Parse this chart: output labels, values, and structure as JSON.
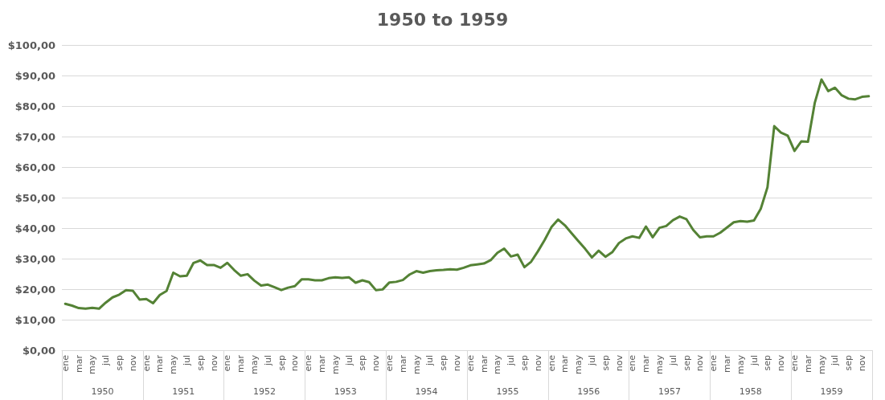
{
  "chart_data": {
    "type": "line",
    "title": "1950 to 1959",
    "categories": [
      "ene",
      null,
      "mar",
      null,
      "may",
      null,
      "jul",
      null,
      "sep",
      null,
      "nov",
      null,
      "ene",
      null,
      "mar",
      null,
      "may",
      null,
      "jul",
      null,
      "sep",
      null,
      "nov",
      null,
      "ene",
      null,
      "mar",
      null,
      "may",
      null,
      "jul",
      null,
      "sep",
      null,
      "nov",
      null,
      "ene",
      null,
      "mar",
      null,
      "may",
      null,
      "jul",
      null,
      "sep",
      null,
      "nov",
      null,
      "ene",
      null,
      "mar",
      null,
      "may",
      null,
      "jul",
      null,
      "sep",
      null,
      "nov",
      null,
      "ene",
      null,
      "mar",
      null,
      "may",
      null,
      "jul",
      null,
      "sep",
      null,
      "nov",
      null,
      "ene",
      null,
      "mar",
      null,
      "may",
      null,
      "jul",
      null,
      "sep",
      null,
      "nov",
      null,
      "ene",
      null,
      "mar",
      null,
      "may",
      null,
      "jul",
      null,
      "sep",
      null,
      "nov",
      null,
      "ene",
      null,
      "mar",
      null,
      "may",
      null,
      "jul",
      null,
      "sep",
      null,
      "nov",
      null,
      "ene",
      null,
      "mar",
      null,
      "may",
      null,
      "jul",
      null,
      "sep",
      null,
      "nov",
      null
    ],
    "annotations": [
      "1950",
      "1951",
      "1952",
      "1953",
      "1954",
      "1955",
      "1956",
      "1957",
      "1958",
      "1959"
    ],
    "series": [
      {
        "color": "#548235",
        "values": [
          15.2,
          14.6,
          13.8,
          13.6,
          13.9,
          13.6,
          15.6,
          17.3,
          18.2,
          19.7,
          19.5,
          16.6,
          16.8,
          15.4,
          18.1,
          19.4,
          25.4,
          24.2,
          24.4,
          28.6,
          29.4,
          27.9,
          27.9,
          27.0,
          28.6,
          26.3,
          24.4,
          24.9,
          22.8,
          21.2,
          21.5,
          20.6,
          19.7,
          20.5,
          21.0,
          23.2,
          23.2,
          22.9,
          22.9,
          23.6,
          23.9,
          23.7,
          23.9,
          22.1,
          22.9,
          22.3,
          19.7,
          19.9,
          22.2,
          22.4,
          23.0,
          24.8,
          25.9,
          25.4,
          25.9,
          26.2,
          26.3,
          26.5,
          26.4,
          27.0,
          27.8,
          28.1,
          28.4,
          29.5,
          31.9,
          33.3,
          30.7,
          31.3,
          27.2,
          29.0,
          32.4,
          36.1,
          40.3,
          42.8,
          40.9,
          38.3,
          35.7,
          33.2,
          30.4,
          32.6,
          30.6,
          32.1,
          35.1,
          36.6,
          37.3,
          36.8,
          40.5,
          37.0,
          40.1,
          40.7,
          42.6,
          43.8,
          42.9,
          39.4,
          37.0,
          37.3,
          37.3,
          38.5,
          40.2,
          41.9,
          42.3,
          42.1,
          42.5,
          46.3,
          53.4,
          73.4,
          71.3,
          70.3,
          65.3,
          68.4,
          68.3,
          81.0,
          88.7,
          84.9,
          86.0,
          83.5,
          82.4,
          82.2,
          83.0,
          83.2
        ]
      }
    ],
    "ylim": [
      0,
      100
    ],
    "yticks": [
      {
        "value": 0,
        "label": "$0,00"
      },
      {
        "value": 10,
        "label": "$10,00"
      },
      {
        "value": 20,
        "label": "$20,00"
      },
      {
        "value": 30,
        "label": "$30,00"
      },
      {
        "value": 40,
        "label": "$40,00"
      },
      {
        "value": 50,
        "label": "$50,00"
      },
      {
        "value": 60,
        "label": "$60,00"
      },
      {
        "value": 70,
        "label": "$70,00"
      },
      {
        "value": 80,
        "label": "$80,00"
      },
      {
        "value": 90,
        "label": "$90,00"
      },
      {
        "value": 100,
        "label": "$100,00"
      }
    ],
    "grid": "y",
    "marker": "none",
    "line_style": "solid"
  }
}
